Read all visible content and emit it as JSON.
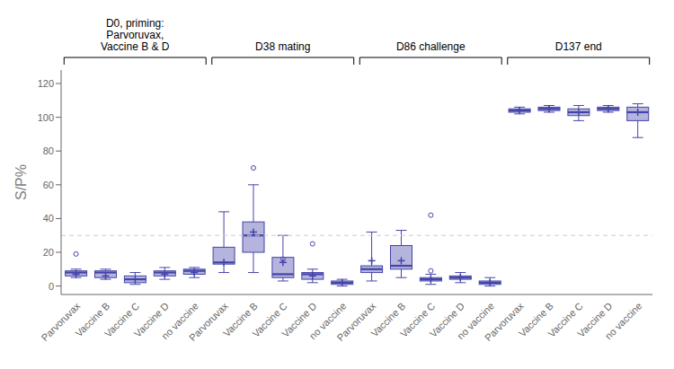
{
  "chart_data": {
    "type": "box",
    "ylabel": "S/P%",
    "ylim": [
      -5,
      128
    ],
    "yticks": [
      0,
      20,
      40,
      60,
      80,
      100,
      120
    ],
    "grid": false,
    "color": "#4444aa",
    "hline": 30,
    "groups": [
      {
        "label": "D0, priming:\nParvoruvax,\nVaccine B & D",
        "categories": [
          "Parvoruvax",
          "Vaccine B",
          "Vaccine C",
          "Vaccine D",
          "no vaccine"
        ],
        "boxes": [
          {
            "q1": 6,
            "med": 8,
            "q3": 9,
            "mean": 7,
            "whislo": 5,
            "whishi": 10,
            "fliers": [
              19
            ]
          },
          {
            "q1": 5,
            "med": 8,
            "q3": 9,
            "mean": 6,
            "whislo": 4,
            "whishi": 10,
            "fliers": []
          },
          {
            "q1": 2,
            "med": 4,
            "q3": 6,
            "mean": 4,
            "whislo": 1,
            "whishi": 8,
            "fliers": []
          },
          {
            "q1": 6,
            "med": 8,
            "q3": 9,
            "mean": 7,
            "whislo": 4,
            "whishi": 11,
            "fliers": []
          },
          {
            "q1": 7,
            "med": 9,
            "q3": 10,
            "mean": 8,
            "whislo": 5,
            "whishi": 11,
            "fliers": []
          }
        ]
      },
      {
        "label": "D38 mating",
        "categories": [
          "Parvoruvax",
          "Vaccine B",
          "Vaccine C",
          "Vaccine D",
          "no vaccine"
        ],
        "boxes": [
          {
            "q1": 13,
            "med": 14,
            "q3": 23,
            "mean": 14,
            "whislo": 8,
            "whishi": 44,
            "fliers": []
          },
          {
            "q1": 20,
            "med": 30,
            "q3": 38,
            "mean": 32,
            "whislo": 8,
            "whishi": 60,
            "fliers": [
              70
            ]
          },
          {
            "q1": 5,
            "med": 7,
            "q3": 17,
            "mean": 14,
            "whislo": 3,
            "whishi": 30,
            "fliers": [
              16
            ]
          },
          {
            "q1": 4,
            "med": 7,
            "q3": 8,
            "mean": 6,
            "whislo": 2,
            "whishi": 10,
            "fliers": [
              25
            ]
          },
          {
            "q1": 1,
            "med": 2,
            "q3": 3,
            "mean": 2,
            "whislo": 0,
            "whishi": 4,
            "fliers": []
          }
        ]
      },
      {
        "label": "D86 challenge",
        "categories": [
          "Parvoruvax",
          "Vaccine B",
          "Vaccine C",
          "Vaccine D",
          "no vaccine"
        ],
        "boxes": [
          {
            "q1": 8,
            "med": 10,
            "q3": 12,
            "mean": 15,
            "whislo": 3,
            "whishi": 32,
            "fliers": []
          },
          {
            "q1": 10,
            "med": 12,
            "q3": 24,
            "mean": 15,
            "whislo": 5,
            "whishi": 33,
            "fliers": []
          },
          {
            "q1": 3,
            "med": 4,
            "q3": 5,
            "mean": 4,
            "whislo": 1,
            "whishi": 7,
            "fliers": [
              9,
              42
            ]
          },
          {
            "q1": 4,
            "med": 5,
            "q3": 6,
            "mean": 5,
            "whislo": 2,
            "whishi": 8,
            "fliers": []
          },
          {
            "q1": 1,
            "med": 2,
            "q3": 3,
            "mean": 2,
            "whislo": 0,
            "whishi": 5,
            "fliers": []
          }
        ]
      },
      {
        "label": "D137 end",
        "categories": [
          "Parvoruvax",
          "Vaccine B",
          "Vaccine C",
          "Vaccine D",
          "no vaccine"
        ],
        "boxes": [
          {
            "q1": 103,
            "med": 104,
            "q3": 105,
            "mean": 104,
            "whislo": 102,
            "whishi": 106,
            "fliers": []
          },
          {
            "q1": 104,
            "med": 105,
            "q3": 106,
            "mean": 105,
            "whislo": 103,
            "whishi": 107,
            "fliers": []
          },
          {
            "q1": 101,
            "med": 103,
            "q3": 105,
            "mean": 103,
            "whislo": 98,
            "whishi": 107,
            "fliers": []
          },
          {
            "q1": 104,
            "med": 105,
            "q3": 106,
            "mean": 105,
            "whislo": 103,
            "whishi": 107,
            "fliers": []
          },
          {
            "q1": 98,
            "med": 103,
            "q3": 106,
            "mean": 103,
            "whislo": 88,
            "whishi": 108,
            "fliers": []
          }
        ]
      }
    ]
  }
}
